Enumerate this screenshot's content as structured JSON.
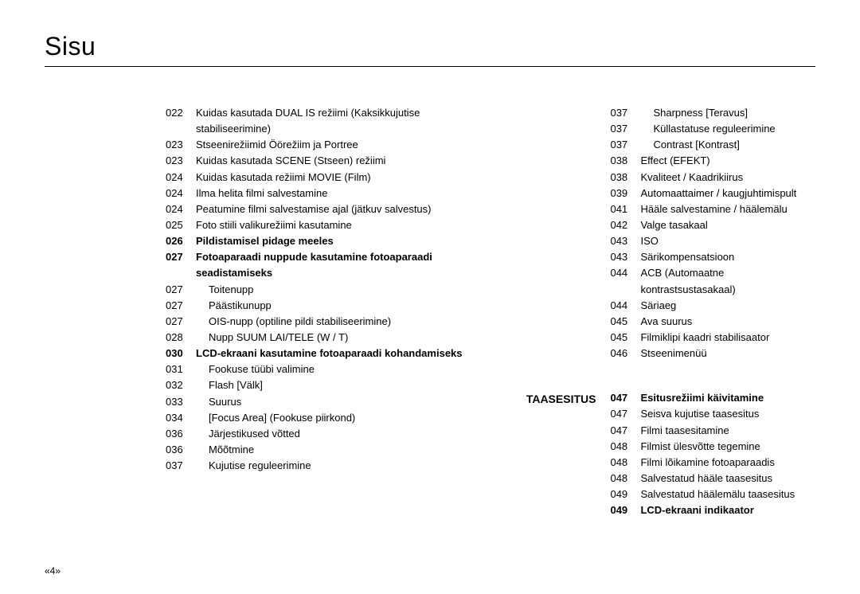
{
  "title": "Sisu",
  "pageNumber": "«4»",
  "sectionLabel": "TAASESITUS",
  "leftColumn": [
    {
      "num": "022",
      "text": "Kuidas kasutada DUAL IS režiimi (Kaksikkujutise stabiliseerimine)",
      "indent": 0,
      "bold": false
    },
    {
      "num": "023",
      "text": "Stseenirežiimid Öörežiim ja Portree",
      "indent": 0,
      "bold": false
    },
    {
      "num": "023",
      "text": "Kuidas kasutada SCENE (Stseen) režiimi",
      "indent": 0,
      "bold": false
    },
    {
      "num": "024",
      "text": "Kuidas kasutada režiimi MOVIE (Film)",
      "indent": 0,
      "bold": false
    },
    {
      "num": "024",
      "text": "Ilma helita filmi salvestamine",
      "indent": 0,
      "bold": false
    },
    {
      "num": "024",
      "text": "Peatumine filmi salvestamise ajal (jätkuv salvestus)",
      "indent": 0,
      "bold": false
    },
    {
      "num": "025",
      "text": "Foto stiili valikurežiimi kasutamine",
      "indent": 0,
      "bold": false
    },
    {
      "num": "026",
      "text": "Pildistamisel pidage meeles",
      "indent": 0,
      "bold": true
    },
    {
      "num": "027",
      "text": "Fotoaparaadi nuppude kasutamine fotoaparaadi seadistamiseks",
      "indent": 0,
      "bold": true
    },
    {
      "num": "027",
      "text": "Toitenupp",
      "indent": 1,
      "bold": false
    },
    {
      "num": "027",
      "text": "Päästikunupp",
      "indent": 1,
      "bold": false
    },
    {
      "num": "027",
      "text": "OIS-nupp (optiline pildi stabiliseerimine)",
      "indent": 1,
      "bold": false
    },
    {
      "num": "028",
      "text": "Nupp SUUM LAI/TELE (W / T)",
      "indent": 1,
      "bold": false
    },
    {
      "num": "030",
      "text": "LCD-ekraani kasutamine fotoaparaadi kohandamiseks",
      "indent": 0,
      "bold": true
    },
    {
      "num": "031",
      "text": "Fookuse tüübi valimine",
      "indent": 1,
      "bold": false
    },
    {
      "num": "032",
      "text": "Flash [Välk]",
      "indent": 1,
      "bold": false
    },
    {
      "num": "033",
      "text": "Suurus",
      "indent": 1,
      "bold": false
    },
    {
      "num": "034",
      "text": "[Focus Area] (Fookuse piirkond)",
      "indent": 1,
      "bold": false
    },
    {
      "num": "036",
      "text": "Järjestikused võtted",
      "indent": 1,
      "bold": false
    },
    {
      "num": "036",
      "text": "Mõõtmine",
      "indent": 1,
      "bold": false
    },
    {
      "num": "037",
      "text": "Kujutise reguleerimine",
      "indent": 1,
      "bold": false
    }
  ],
  "rightColumnTop": [
    {
      "num": "037",
      "text": "Sharpness [Teravus]",
      "indent": 1,
      "bold": false
    },
    {
      "num": "037",
      "text": "Küllastatuse reguleerimine",
      "indent": 1,
      "bold": false
    },
    {
      "num": "037",
      "text": "Contrast [Kontrast]",
      "indent": 1,
      "bold": false
    },
    {
      "num": "038",
      "text": "Effect (EFEKT)",
      "indent": 0,
      "bold": false
    },
    {
      "num": "038",
      "text": "Kvaliteet / Kaadrikiirus",
      "indent": 0,
      "bold": false
    },
    {
      "num": "039",
      "text": "Automaattaimer / kaugjuhtimispult",
      "indent": 0,
      "bold": false
    },
    {
      "num": "041",
      "text": "Hääle salvestamine / häälemälu",
      "indent": 0,
      "bold": false
    },
    {
      "num": "042",
      "text": "Valge tasakaal",
      "indent": 0,
      "bold": false
    },
    {
      "num": "043",
      "text": "ISO",
      "indent": 0,
      "bold": false
    },
    {
      "num": "043",
      "text": "Särikompensatsioon",
      "indent": 0,
      "bold": false
    },
    {
      "num": "044",
      "text": "ACB (Automaatne kontrastsustasakaal)",
      "indent": 0,
      "bold": false
    },
    {
      "num": "044",
      "text": "Säriaeg",
      "indent": 0,
      "bold": false
    },
    {
      "num": "045",
      "text": "Ava suurus",
      "indent": 0,
      "bold": false
    },
    {
      "num": "045",
      "text": "Filmiklipi kaadri stabilisaator",
      "indent": 0,
      "bold": false
    },
    {
      "num": "046",
      "text": "Stseenimenüü",
      "indent": 0,
      "bold": false
    }
  ],
  "rightColumnBottom": [
    {
      "num": "047",
      "text": "Esitusrežiimi käivitamine",
      "indent": 0,
      "bold": true
    },
    {
      "num": "047",
      "text": "Seisva kujutise taasesitus",
      "indent": 0,
      "bold": false
    },
    {
      "num": "047",
      "text": "Filmi taasesitamine",
      "indent": 0,
      "bold": false
    },
    {
      "num": "048",
      "text": "Filmist ülesvõtte tegemine",
      "indent": 0,
      "bold": false
    },
    {
      "num": "048",
      "text": "Filmi lõikamine fotoaparaadis",
      "indent": 0,
      "bold": false
    },
    {
      "num": "048",
      "text": "Salvestatud hääle taasesitus",
      "indent": 0,
      "bold": false
    },
    {
      "num": "049",
      "text": "Salvestatud häälemälu taasesitus",
      "indent": 0,
      "bold": false
    },
    {
      "num": "049",
      "text": "LCD-ekraani indikaator",
      "indent": 0,
      "bold": true
    }
  ]
}
